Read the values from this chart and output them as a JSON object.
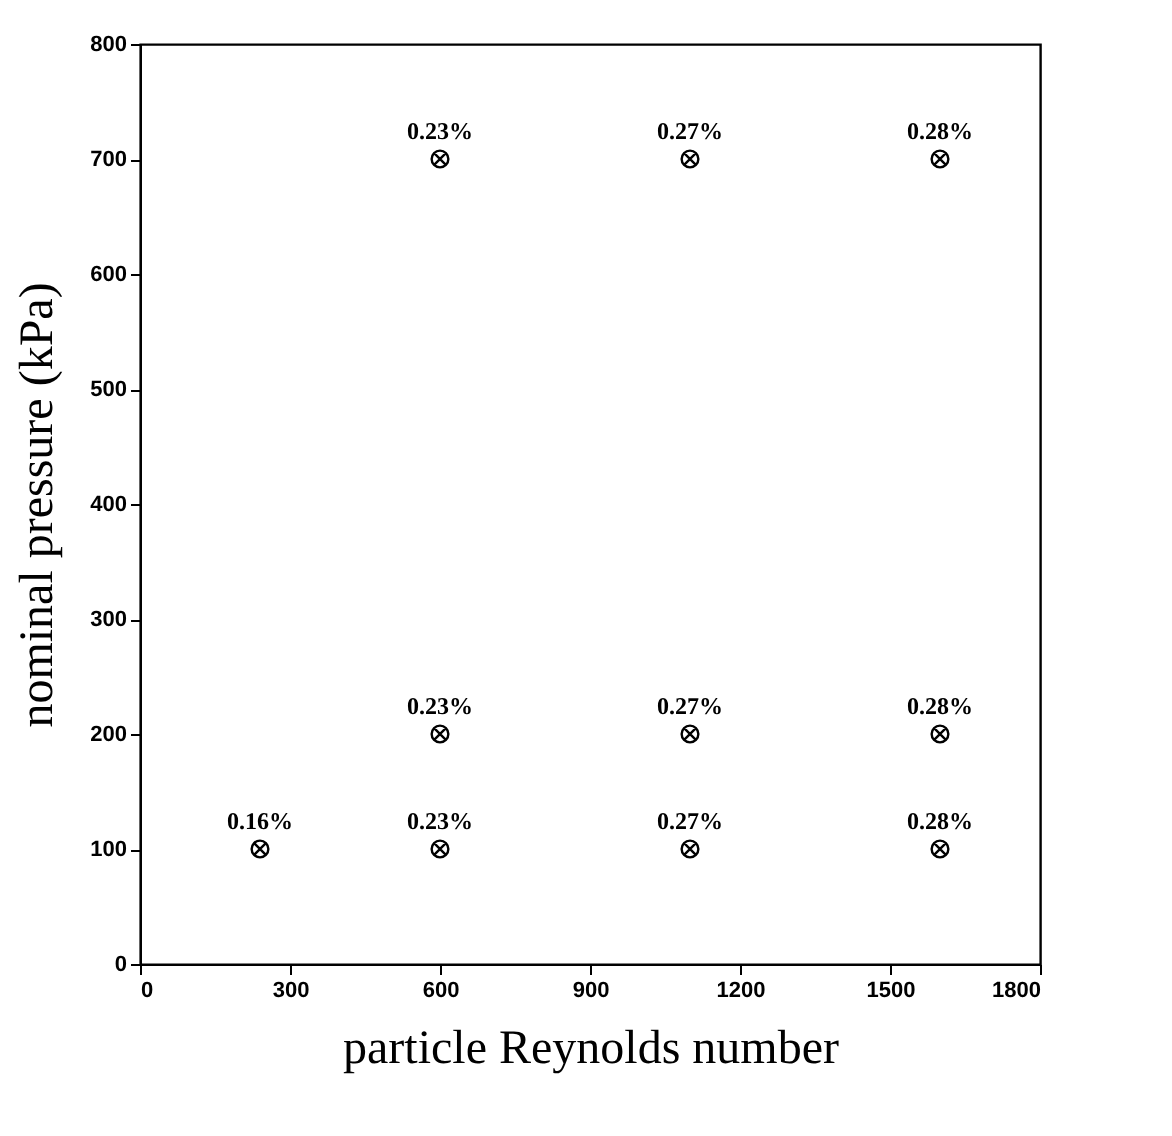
{
  "chart_data": {
    "type": "scatter",
    "xlabel": "particle Reynolds number",
    "ylabel": "nominal pressure (kPa)",
    "x": [
      240,
      600,
      600,
      600,
      1100,
      1100,
      1100,
      1600,
      1600,
      1600
    ],
    "values": [
      100,
      100,
      200,
      700,
      100,
      200,
      700,
      100,
      200,
      700
    ],
    "annotations": [
      {
        "text": "0.16%",
        "x": 240,
        "y": 100
      },
      {
        "text": "0.23%",
        "x": 600,
        "y": 100
      },
      {
        "text": "0.23%",
        "x": 600,
        "y": 200
      },
      {
        "text": "0.23%",
        "x": 600,
        "y": 700
      },
      {
        "text": "0.27%",
        "x": 1100,
        "y": 100
      },
      {
        "text": "0.27%",
        "x": 1100,
        "y": 200
      },
      {
        "text": "0.27%",
        "x": 1100,
        "y": 700
      },
      {
        "text": "0.28%",
        "x": 1600,
        "y": 100
      },
      {
        "text": "0.28%",
        "x": 1600,
        "y": 200
      },
      {
        "text": "0.28%",
        "x": 1600,
        "y": 700
      }
    ],
    "color": "#000000",
    "marker": "cross",
    "xlim": [
      0,
      1800
    ],
    "xticks": [
      0,
      300,
      600,
      900,
      1200,
      1500,
      1800
    ],
    "ylim": [
      0,
      800
    ],
    "yticks": [
      0,
      100,
      200,
      300,
      400,
      500,
      600,
      700,
      800
    ],
    "grid": false
  }
}
